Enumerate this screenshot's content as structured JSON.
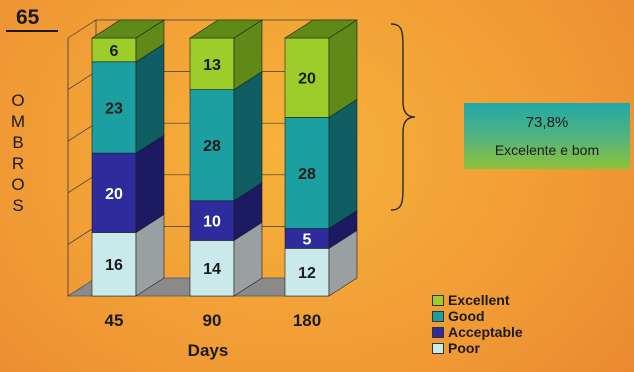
{
  "header": {
    "count": "65"
  },
  "side_label": "OMBROS",
  "summary": {
    "percent": "73,8%",
    "label": "Excelente e bom"
  },
  "chart_data": {
    "type": "bar",
    "stacked": true,
    "three_d": true,
    "categories": [
      "45",
      "90",
      "180"
    ],
    "xlabel": "Days",
    "ylabel": "",
    "ylim": [
      0,
      65
    ],
    "series": [
      {
        "name": "Poor",
        "values": [
          16,
          14,
          12
        ],
        "color": "#c9e9ea",
        "side_color": "#9aa0a1"
      },
      {
        "name": "Acceptable",
        "values": [
          20,
          10,
          5
        ],
        "color": "#2e2c9c",
        "side_color": "#1b1a63"
      },
      {
        "name": "Good",
        "values": [
          23,
          28,
          28
        ],
        "color": "#1b9fa1",
        "side_color": "#0e5e63"
      },
      {
        "name": "Excellent",
        "values": [
          6,
          13,
          20
        ],
        "color": "#9ccd2a",
        "side_color": "#5f8a18"
      }
    ],
    "legend_order": [
      "Excellent",
      "Good",
      "Acceptable",
      "Poor"
    ],
    "legend_position": "bottom-right",
    "grid": true
  }
}
